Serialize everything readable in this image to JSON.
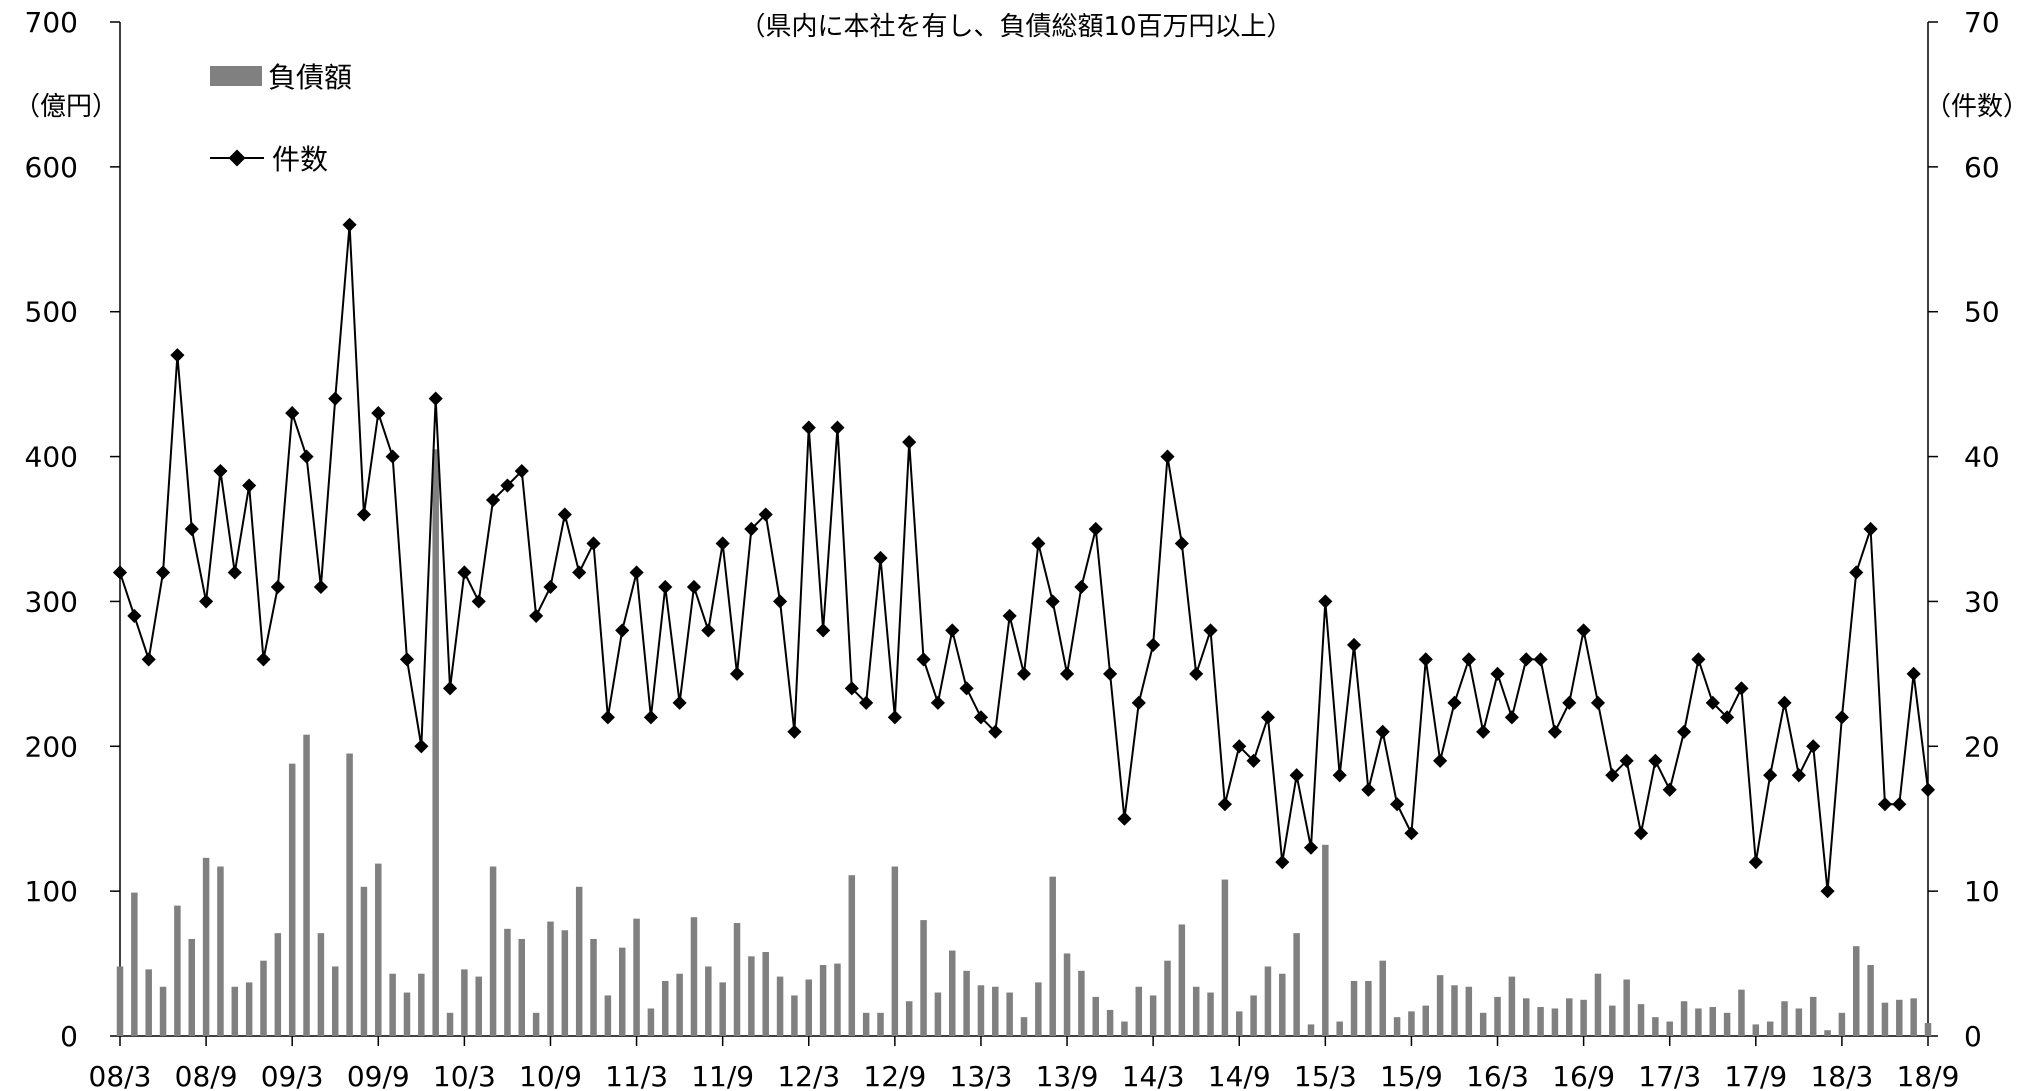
{
  "chart_data": {
    "type": "bar+line",
    "subtitle": "（県内に本社を有し、負債総額10百万円以上）",
    "y_left": {
      "unit_label": "（億円）",
      "range": [
        0,
        700
      ],
      "ticks": [
        "0",
        "100",
        "200",
        "300",
        "400",
        "500",
        "600",
        "700"
      ]
    },
    "y_right": {
      "unit_label": "（件数）",
      "range": [
        0,
        70
      ],
      "ticks": [
        "0",
        "10",
        "20",
        "30",
        "40",
        "50",
        "60",
        "70"
      ]
    },
    "x_tick_labels": [
      "08/3",
      "08/9",
      "09/3",
      "09/9",
      "10/3",
      "10/9",
      "11/3",
      "11/9",
      "12/3",
      "12/9",
      "13/3",
      "13/9",
      "14/3",
      "14/9",
      "15/3",
      "15/9",
      "16/3",
      "16/9",
      "17/3",
      "17/9",
      "18/3",
      "18/9"
    ],
    "legend": {
      "bar_label": "負債額",
      "line_label": "件数"
    },
    "colors": {
      "bar": "#808080",
      "line": "#000000"
    },
    "series": [
      {
        "name": "負債額",
        "axis": "left",
        "values": [
          48,
          99,
          46,
          34,
          90,
          67,
          123,
          117,
          34,
          37,
          52,
          71,
          188,
          208,
          71,
          48,
          195,
          103,
          119,
          43,
          30,
          43,
          405,
          16,
          46,
          41,
          117,
          74,
          67,
          16,
          79,
          73,
          103,
          67,
          28,
          61,
          81,
          19,
          38,
          43,
          82,
          48,
          37,
          78,
          55,
          58,
          41,
          28,
          39,
          49,
          50,
          111,
          16,
          16,
          117,
          24,
          80,
          30,
          59,
          45,
          35,
          34,
          30,
          13,
          37,
          110,
          57,
          45,
          27,
          18,
          10,
          34,
          28,
          52,
          77,
          34,
          30,
          108,
          17,
          28,
          48,
          43,
          71,
          8,
          132,
          10,
          38,
          38,
          52,
          13,
          17,
          21,
          42,
          35,
          34,
          16,
          27,
          41,
          26,
          20,
          19,
          26,
          25,
          43,
          21,
          39,
          22,
          13,
          10,
          24,
          19,
          20,
          16,
          32,
          8,
          10,
          24,
          19,
          27,
          4,
          16,
          62,
          49,
          23,
          25,
          26,
          9
        ]
      },
      {
        "name": "件数",
        "axis": "right",
        "values": [
          32,
          29,
          26,
          32,
          47,
          35,
          30,
          39,
          32,
          38,
          26,
          31,
          43,
          40,
          31,
          44,
          56,
          36,
          43,
          40,
          26,
          20,
          44,
          24,
          32,
          30,
          37,
          38,
          39,
          29,
          31,
          36,
          32,
          34,
          22,
          28,
          32,
          22,
          31,
          23,
          31,
          28,
          34,
          25,
          35,
          36,
          30,
          21,
          42,
          28,
          42,
          24,
          23,
          33,
          22,
          41,
          26,
          23,
          28,
          24,
          22,
          21,
          29,
          25,
          34,
          30,
          25,
          31,
          35,
          25,
          15,
          23,
          27,
          40,
          34,
          25,
          28,
          16,
          20,
          19,
          22,
          12,
          18,
          13,
          30,
          18,
          27,
          17,
          21,
          16,
          14,
          26,
          19,
          23,
          26,
          21,
          25,
          22,
          26,
          26,
          21,
          23,
          28,
          23,
          18,
          19,
          14,
          19,
          17,
          21,
          26,
          23,
          22,
          24,
          12,
          18,
          23,
          18,
          20,
          10,
          22,
          32,
          35,
          16,
          16,
          25,
          17
        ]
      }
    ]
  }
}
